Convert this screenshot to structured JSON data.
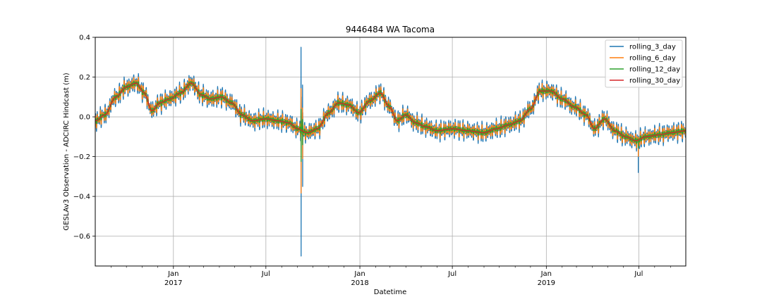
{
  "chart_data": {
    "type": "line",
    "title": "9446484 WA Tacoma",
    "xlabel": "Datetime",
    "ylabel": "GESLAv3 Observation - ADCIRC Hindcast (m)",
    "x_range": [
      "2016-08-01",
      "2019-10-01"
    ],
    "ylim": [
      -0.75,
      0.4
    ],
    "grid": true,
    "legend_position": "top-right",
    "y_ticks": [
      {
        "value": -0.6,
        "label": "−0.6"
      },
      {
        "value": -0.4,
        "label": "−0.4"
      },
      {
        "value": -0.2,
        "label": "−0.2"
      },
      {
        "value": 0.0,
        "label": "0.0"
      },
      {
        "value": 0.2,
        "label": "0.2"
      },
      {
        "value": 0.4,
        "label": "0.4"
      }
    ],
    "x_major_ticks": [
      {
        "date": "2017-01-01",
        "label": "Jan",
        "year": "2017"
      },
      {
        "date": "2017-07-01",
        "label": "Jul",
        "year": ""
      },
      {
        "date": "2018-01-01",
        "label": "Jan",
        "year": "2018"
      },
      {
        "date": "2018-07-01",
        "label": "Jul",
        "year": ""
      },
      {
        "date": "2019-01-01",
        "label": "Jan",
        "year": "2019"
      },
      {
        "date": "2019-07-01",
        "label": "Jul",
        "year": ""
      }
    ],
    "x_minor_ticks": [
      "2016-09-01",
      "2016-10-01",
      "2016-11-01",
      "2016-12-01",
      "2017-02-01",
      "2017-03-01",
      "2017-04-01",
      "2017-05-01",
      "2017-06-01",
      "2017-08-01",
      "2017-09-01",
      "2017-10-01",
      "2017-11-01",
      "2017-12-01",
      "2018-02-01",
      "2018-03-01",
      "2018-04-01",
      "2018-05-01",
      "2018-06-01",
      "2018-08-01",
      "2018-09-01",
      "2018-10-01",
      "2018-11-01",
      "2018-12-01",
      "2019-02-01",
      "2019-03-01",
      "2019-04-01",
      "2019-05-01",
      "2019-06-01",
      "2019-08-01",
      "2019-09-01"
    ],
    "anchors": [
      [
        "2016-08-01",
        -0.02
      ],
      [
        "2016-08-20",
        0.01
      ],
      [
        "2016-09-10",
        0.1
      ],
      [
        "2016-10-01",
        0.15
      ],
      [
        "2016-10-20",
        0.17
      ],
      [
        "2016-11-05",
        0.12
      ],
      [
        "2016-11-20",
        0.03
      ],
      [
        "2016-12-05",
        0.07
      ],
      [
        "2016-12-25",
        0.09
      ],
      [
        "2017-01-15",
        0.12
      ],
      [
        "2017-02-05",
        0.17
      ],
      [
        "2017-02-25",
        0.11
      ],
      [
        "2017-03-15",
        0.09
      ],
      [
        "2017-04-05",
        0.1
      ],
      [
        "2017-04-25",
        0.07
      ],
      [
        "2017-05-15",
        0.01
      ],
      [
        "2017-06-05",
        -0.02
      ],
      [
        "2017-07-01",
        -0.01
      ],
      [
        "2017-07-25",
        -0.02
      ],
      [
        "2017-08-15",
        -0.03
      ],
      [
        "2017-09-01",
        -0.06
      ],
      [
        "2017-09-20",
        -0.08
      ],
      [
        "2017-10-10",
        -0.06
      ],
      [
        "2017-11-01",
        0.02
      ],
      [
        "2017-11-20",
        0.07
      ],
      [
        "2017-12-10",
        0.06
      ],
      [
        "2017-12-30",
        0.02
      ],
      [
        "2018-01-20",
        0.08
      ],
      [
        "2018-02-10",
        0.12
      ],
      [
        "2018-02-28",
        0.05
      ],
      [
        "2018-03-15",
        -0.02
      ],
      [
        "2018-04-01",
        0.01
      ],
      [
        "2018-04-20",
        -0.03
      ],
      [
        "2018-05-10",
        -0.05
      ],
      [
        "2018-06-01",
        -0.07
      ],
      [
        "2018-07-01",
        -0.06
      ],
      [
        "2018-08-01",
        -0.07
      ],
      [
        "2018-09-01",
        -0.08
      ],
      [
        "2018-09-25",
        -0.06
      ],
      [
        "2018-10-20",
        -0.04
      ],
      [
        "2018-11-10",
        -0.02
      ],
      [
        "2018-12-01",
        0.04
      ],
      [
        "2018-12-20",
        0.13
      ],
      [
        "2019-01-10",
        0.13
      ],
      [
        "2019-02-01",
        0.09
      ],
      [
        "2019-02-25",
        0.05
      ],
      [
        "2019-03-20",
        0.01
      ],
      [
        "2019-04-05",
        -0.06
      ],
      [
        "2019-04-25",
        -0.01
      ],
      [
        "2019-05-15",
        -0.07
      ],
      [
        "2019-06-05",
        -0.1
      ],
      [
        "2019-06-25",
        -0.12
      ],
      [
        "2019-07-15",
        -0.1
      ],
      [
        "2019-08-10",
        -0.09
      ],
      [
        "2019-09-01",
        -0.08
      ],
      [
        "2019-10-01",
        -0.07
      ]
    ],
    "spikes": [
      {
        "date": "2017-09-08",
        "min": -0.7,
        "max": 0.35
      },
      {
        "date": "2017-09-11",
        "min": -0.35,
        "max": 0.16
      },
      {
        "date": "2019-06-30",
        "min": -0.28,
        "max": -0.12
      }
    ],
    "series": [
      {
        "name": "rolling_3_day",
        "color": "#1f77b4",
        "window_days": 3,
        "amplitude": 0.045
      },
      {
        "name": "rolling_6_day",
        "color": "#ff7f0e",
        "window_days": 6,
        "amplitude": 0.035
      },
      {
        "name": "rolling_12_day",
        "color": "#2ca02c",
        "window_days": 12,
        "amplitude": 0.018
      },
      {
        "name": "rolling_30_day",
        "color": "#d62728",
        "window_days": 30,
        "amplitude": 0.0
      }
    ]
  }
}
